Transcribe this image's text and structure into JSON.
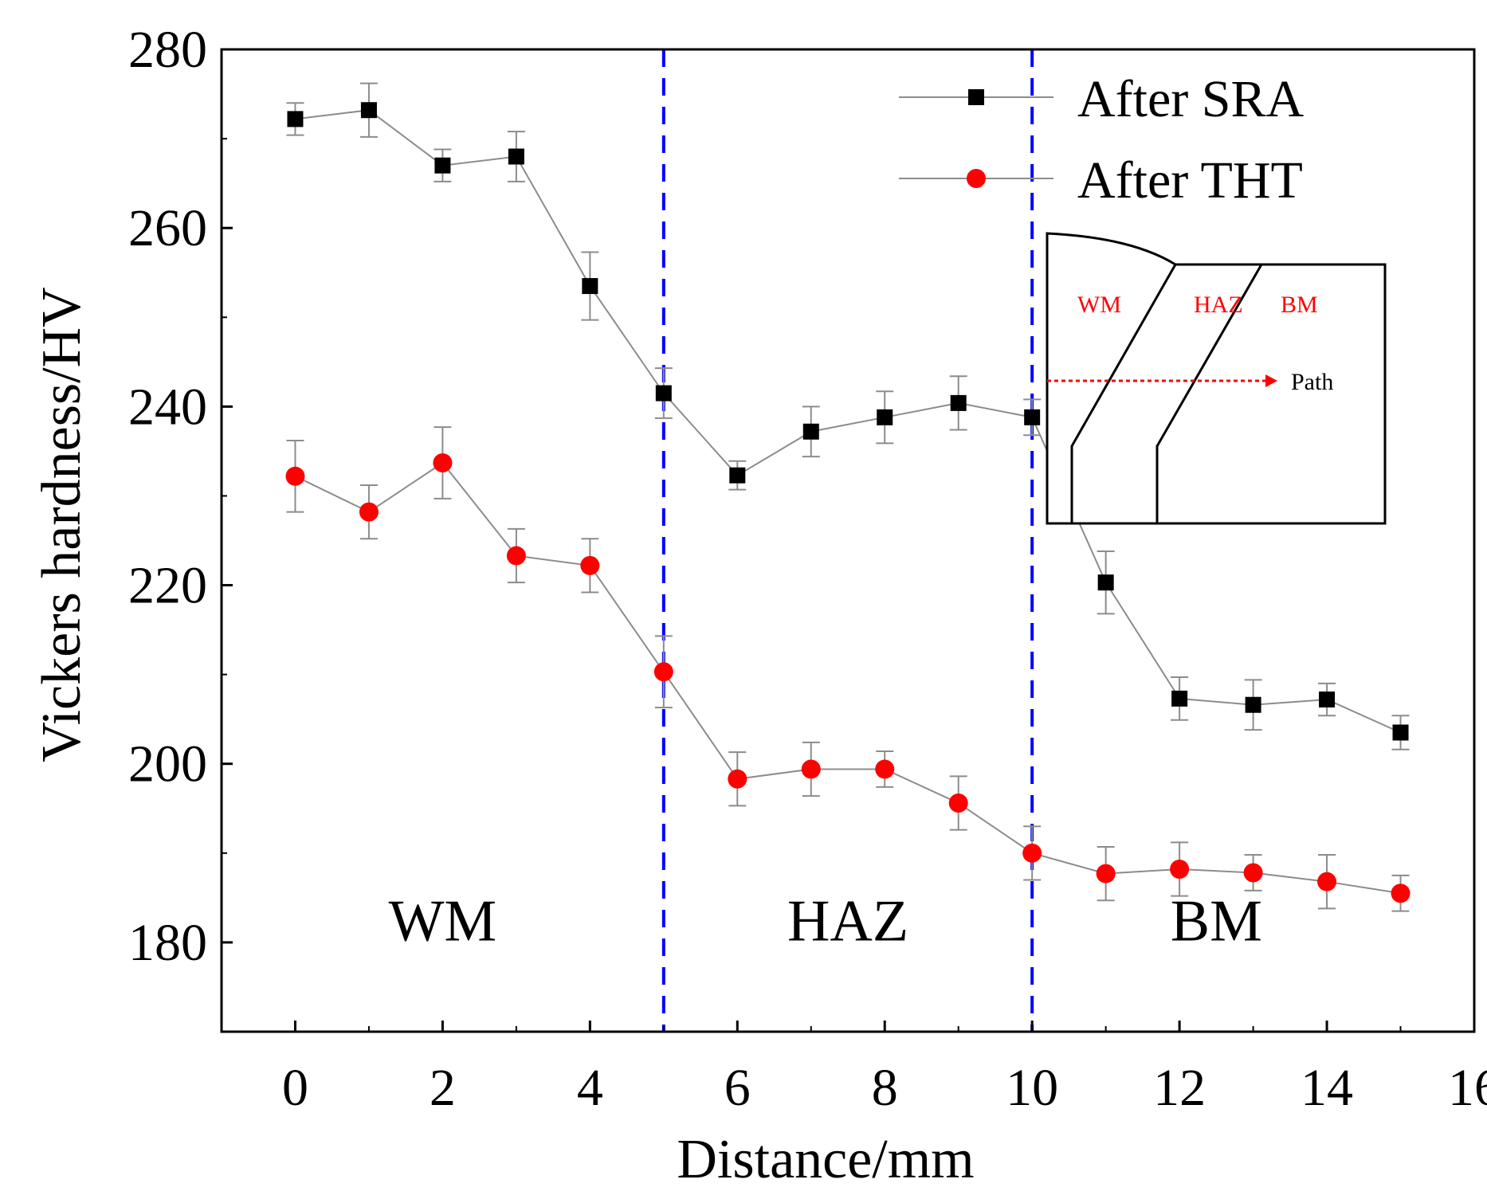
{
  "chart_data": {
    "type": "line",
    "title": "",
    "xlabel": "Distance/mm",
    "ylabel": "Vickers hardness/HV",
    "xlim": [
      -1,
      16
    ],
    "ylim": [
      170,
      280
    ],
    "xticks": [
      0,
      2,
      4,
      6,
      8,
      10,
      12,
      14,
      16
    ],
    "xtick_labels": [
      "0",
      "2",
      "4",
      "6",
      "8",
      "10",
      "12",
      "14",
      "16"
    ],
    "yticks": [
      180,
      200,
      220,
      240,
      260,
      280
    ],
    "ytick_labels": [
      "180",
      "200",
      "220",
      "240",
      "260",
      "280"
    ],
    "grid": false,
    "legend_position": "top-right",
    "x": [
      0,
      1,
      2,
      3,
      4,
      5,
      6,
      7,
      8,
      9,
      10,
      11,
      12,
      13,
      14,
      15
    ],
    "series": [
      {
        "name": "After SRA",
        "marker": "square",
        "color": "#000000",
        "line_color": "#8c8c8c",
        "values": [
          272.2,
          273.2,
          267.0,
          268.0,
          253.5,
          241.5,
          232.3,
          237.2,
          238.8,
          240.4,
          238.8,
          220.3,
          207.3,
          206.6,
          207.2,
          203.5
        ],
        "errors": [
          1.8,
          3.0,
          1.8,
          2.8,
          3.8,
          2.8,
          1.6,
          2.8,
          2.9,
          3.0,
          2.0,
          3.5,
          2.4,
          2.8,
          1.8,
          1.9
        ]
      },
      {
        "name": "After THT",
        "marker": "circle",
        "color": "#ff0000",
        "line_color": "#8c8c8c",
        "values": [
          232.2,
          228.2,
          233.7,
          223.3,
          222.2,
          210.3,
          198.3,
          199.4,
          199.4,
          195.6,
          190.0,
          187.7,
          188.2,
          187.8,
          186.8,
          185.5
        ],
        "errors": [
          4.0,
          3.0,
          4.0,
          3.0,
          3.0,
          4.0,
          3.0,
          3.0,
          2.0,
          3.0,
          3.0,
          3.0,
          3.0,
          2.0,
          3.0,
          2.0
        ]
      }
    ],
    "vlines": [
      {
        "x": 5,
        "color": "#0000ff",
        "style": "dashed"
      },
      {
        "x": 10,
        "color": "#0000ff",
        "style": "dashed"
      }
    ],
    "annotations": [
      {
        "text": "WM",
        "x": 2,
        "y": 182
      },
      {
        "text": "HAZ",
        "x": 7.5,
        "y": 182
      },
      {
        "text": "BM",
        "x": 12.5,
        "y": 182
      }
    ],
    "inset": {
      "labels": [
        "WM",
        "HAZ",
        "BM"
      ],
      "path_label": "Path",
      "label_color": "#ff0000",
      "arrow_color": "#ff0000"
    }
  }
}
